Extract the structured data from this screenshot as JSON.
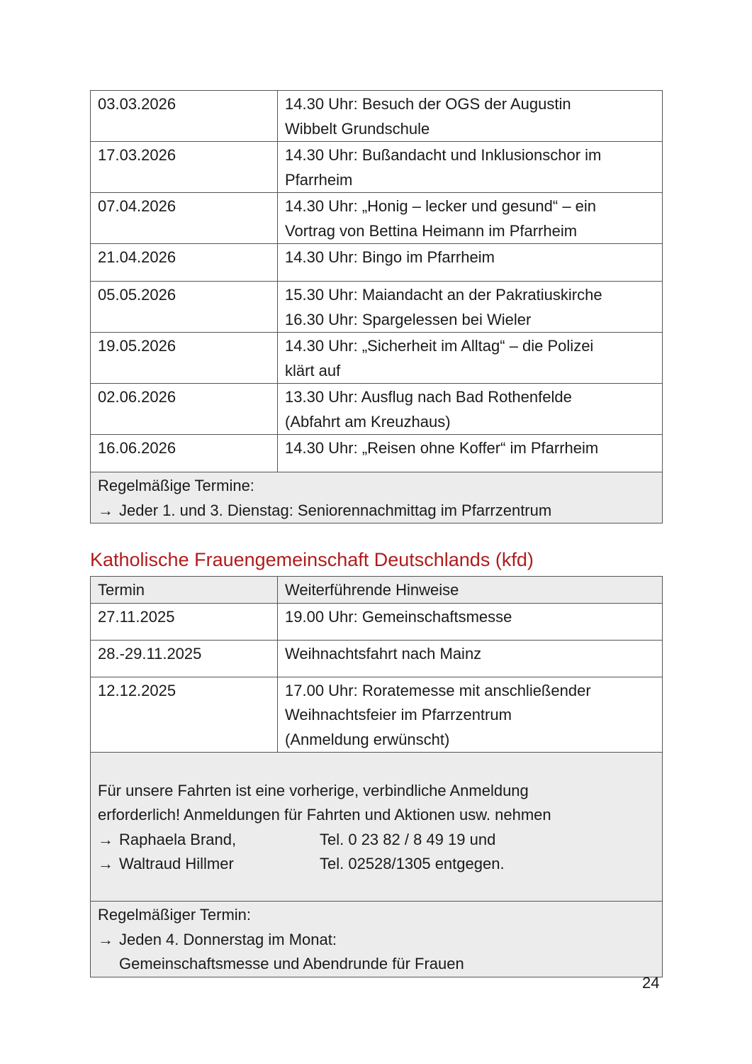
{
  "schedule1": {
    "rows": [
      {
        "date": "03.03.2026",
        "text": "14.30 Uhr: Besuch der OGS der Augustin\nWibbelt Grundschule"
      },
      {
        "date": "17.03.2026",
        "text": "14.30 Uhr: Bußandacht und Inklusionschor im\nPfarrheim"
      },
      {
        "date": "07.04.2026",
        "text": "14.30 Uhr: „Honig – lecker und gesund“ – ein\nVortrag von Bettina Heimann im Pfarrheim"
      },
      {
        "date": "21.04.2026",
        "text": "14.30 Uhr: Bingo im Pfarrheim"
      },
      {
        "date": "05.05.2026",
        "text": "15.30 Uhr: Maiandacht an der Pakratiuskirche\n16.30 Uhr: Spargelessen bei Wieler"
      },
      {
        "date": "19.05.2026",
        "text": "14.30 Uhr: „Sicherheit im Alltag“ – die Polizei\nklärt auf"
      },
      {
        "date": "02.06.2026",
        "text": "13.30 Uhr: Ausflug nach Bad Rothenfelde\n(Abfahrt am Kreuzhaus)"
      },
      {
        "date": "16.06.2026",
        "text": "14.30 Uhr: „Reisen ohne Koffer“ im Pfarrheim"
      }
    ],
    "regular_title": "Regelmäßige Termine:",
    "regular_item": "Jeder 1. und 3. Dienstag: Seniorennachmittag im Pfarrzentrum"
  },
  "kfd": {
    "heading": "Katholische Frauengemeinschaft Deutschlands (kfd)",
    "heading_color": "#b01c1c",
    "col_date": "Termin",
    "col_notes": "Weiterführende Hinweise",
    "rows": [
      {
        "date": "27.11.2025",
        "text": "19.00 Uhr: Gemeinschaftsmesse"
      },
      {
        "date": "28.-29.11.2025",
        "text": "Weihnachtsfahrt nach Mainz"
      },
      {
        "date": "12.12.2025",
        "text": "17.00 Uhr: Roratemesse mit anschließender\nWeihnachtsfeier im Pfarrzentrum\n(Anmeldung erwünscht)"
      }
    ],
    "note": "Für unsere Fahrten ist eine vorherige, verbindliche Anmeldung\nerforderlich! Anmeldungen für Fahrten und Aktionen usw. nehmen",
    "contacts": [
      {
        "name": "Raphaela Brand,",
        "phone": "Tel. 0 23 82 / 8 49 19 und"
      },
      {
        "name": "Waltraud Hillmer",
        "phone": "Tel. 02528/1305 entgegen."
      }
    ],
    "regular_title": "Regelmäßiger Termin:",
    "regular_item": "Jeden 4. Donnerstag im Monat:",
    "regular_item2": "Gemeinschaftsmesse und Abendrunde für Frauen"
  },
  "page_number": "24",
  "arrow_icon": "→"
}
